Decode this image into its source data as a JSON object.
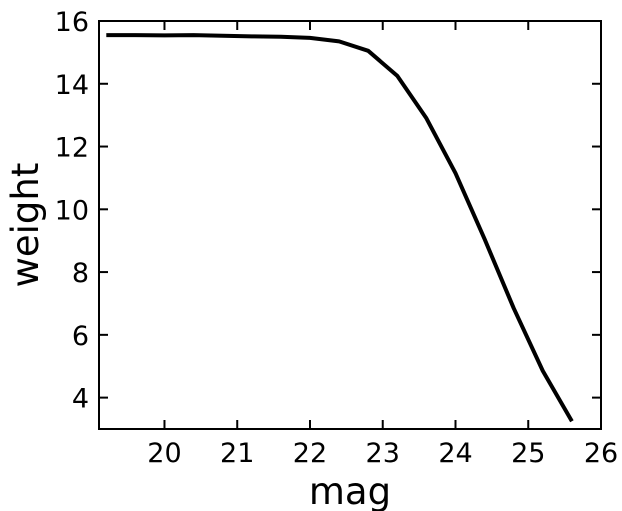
{
  "chart_data": {
    "type": "line",
    "title": "",
    "xlabel": "mag",
    "ylabel": "weight",
    "xlim": [
      19.1,
      26.0
    ],
    "ylim": [
      3.0,
      16.0
    ],
    "xticks": [
      20,
      21,
      22,
      23,
      24,
      25,
      26
    ],
    "yticks": [
      4,
      6,
      8,
      10,
      12,
      14,
      16
    ],
    "grid": false,
    "series": [
      {
        "color": "#000000",
        "x": [
          19.2,
          19.6,
          20.0,
          20.4,
          20.8,
          21.2,
          21.6,
          22.0,
          22.4,
          22.8,
          23.2,
          23.6,
          24.0,
          24.4,
          24.8,
          25.2,
          25.6
        ],
        "y": [
          15.55,
          15.55,
          15.54,
          15.55,
          15.53,
          15.51,
          15.5,
          15.46,
          15.35,
          15.05,
          14.25,
          12.9,
          11.15,
          9.05,
          6.85,
          4.85,
          3.25
        ]
      }
    ]
  }
}
